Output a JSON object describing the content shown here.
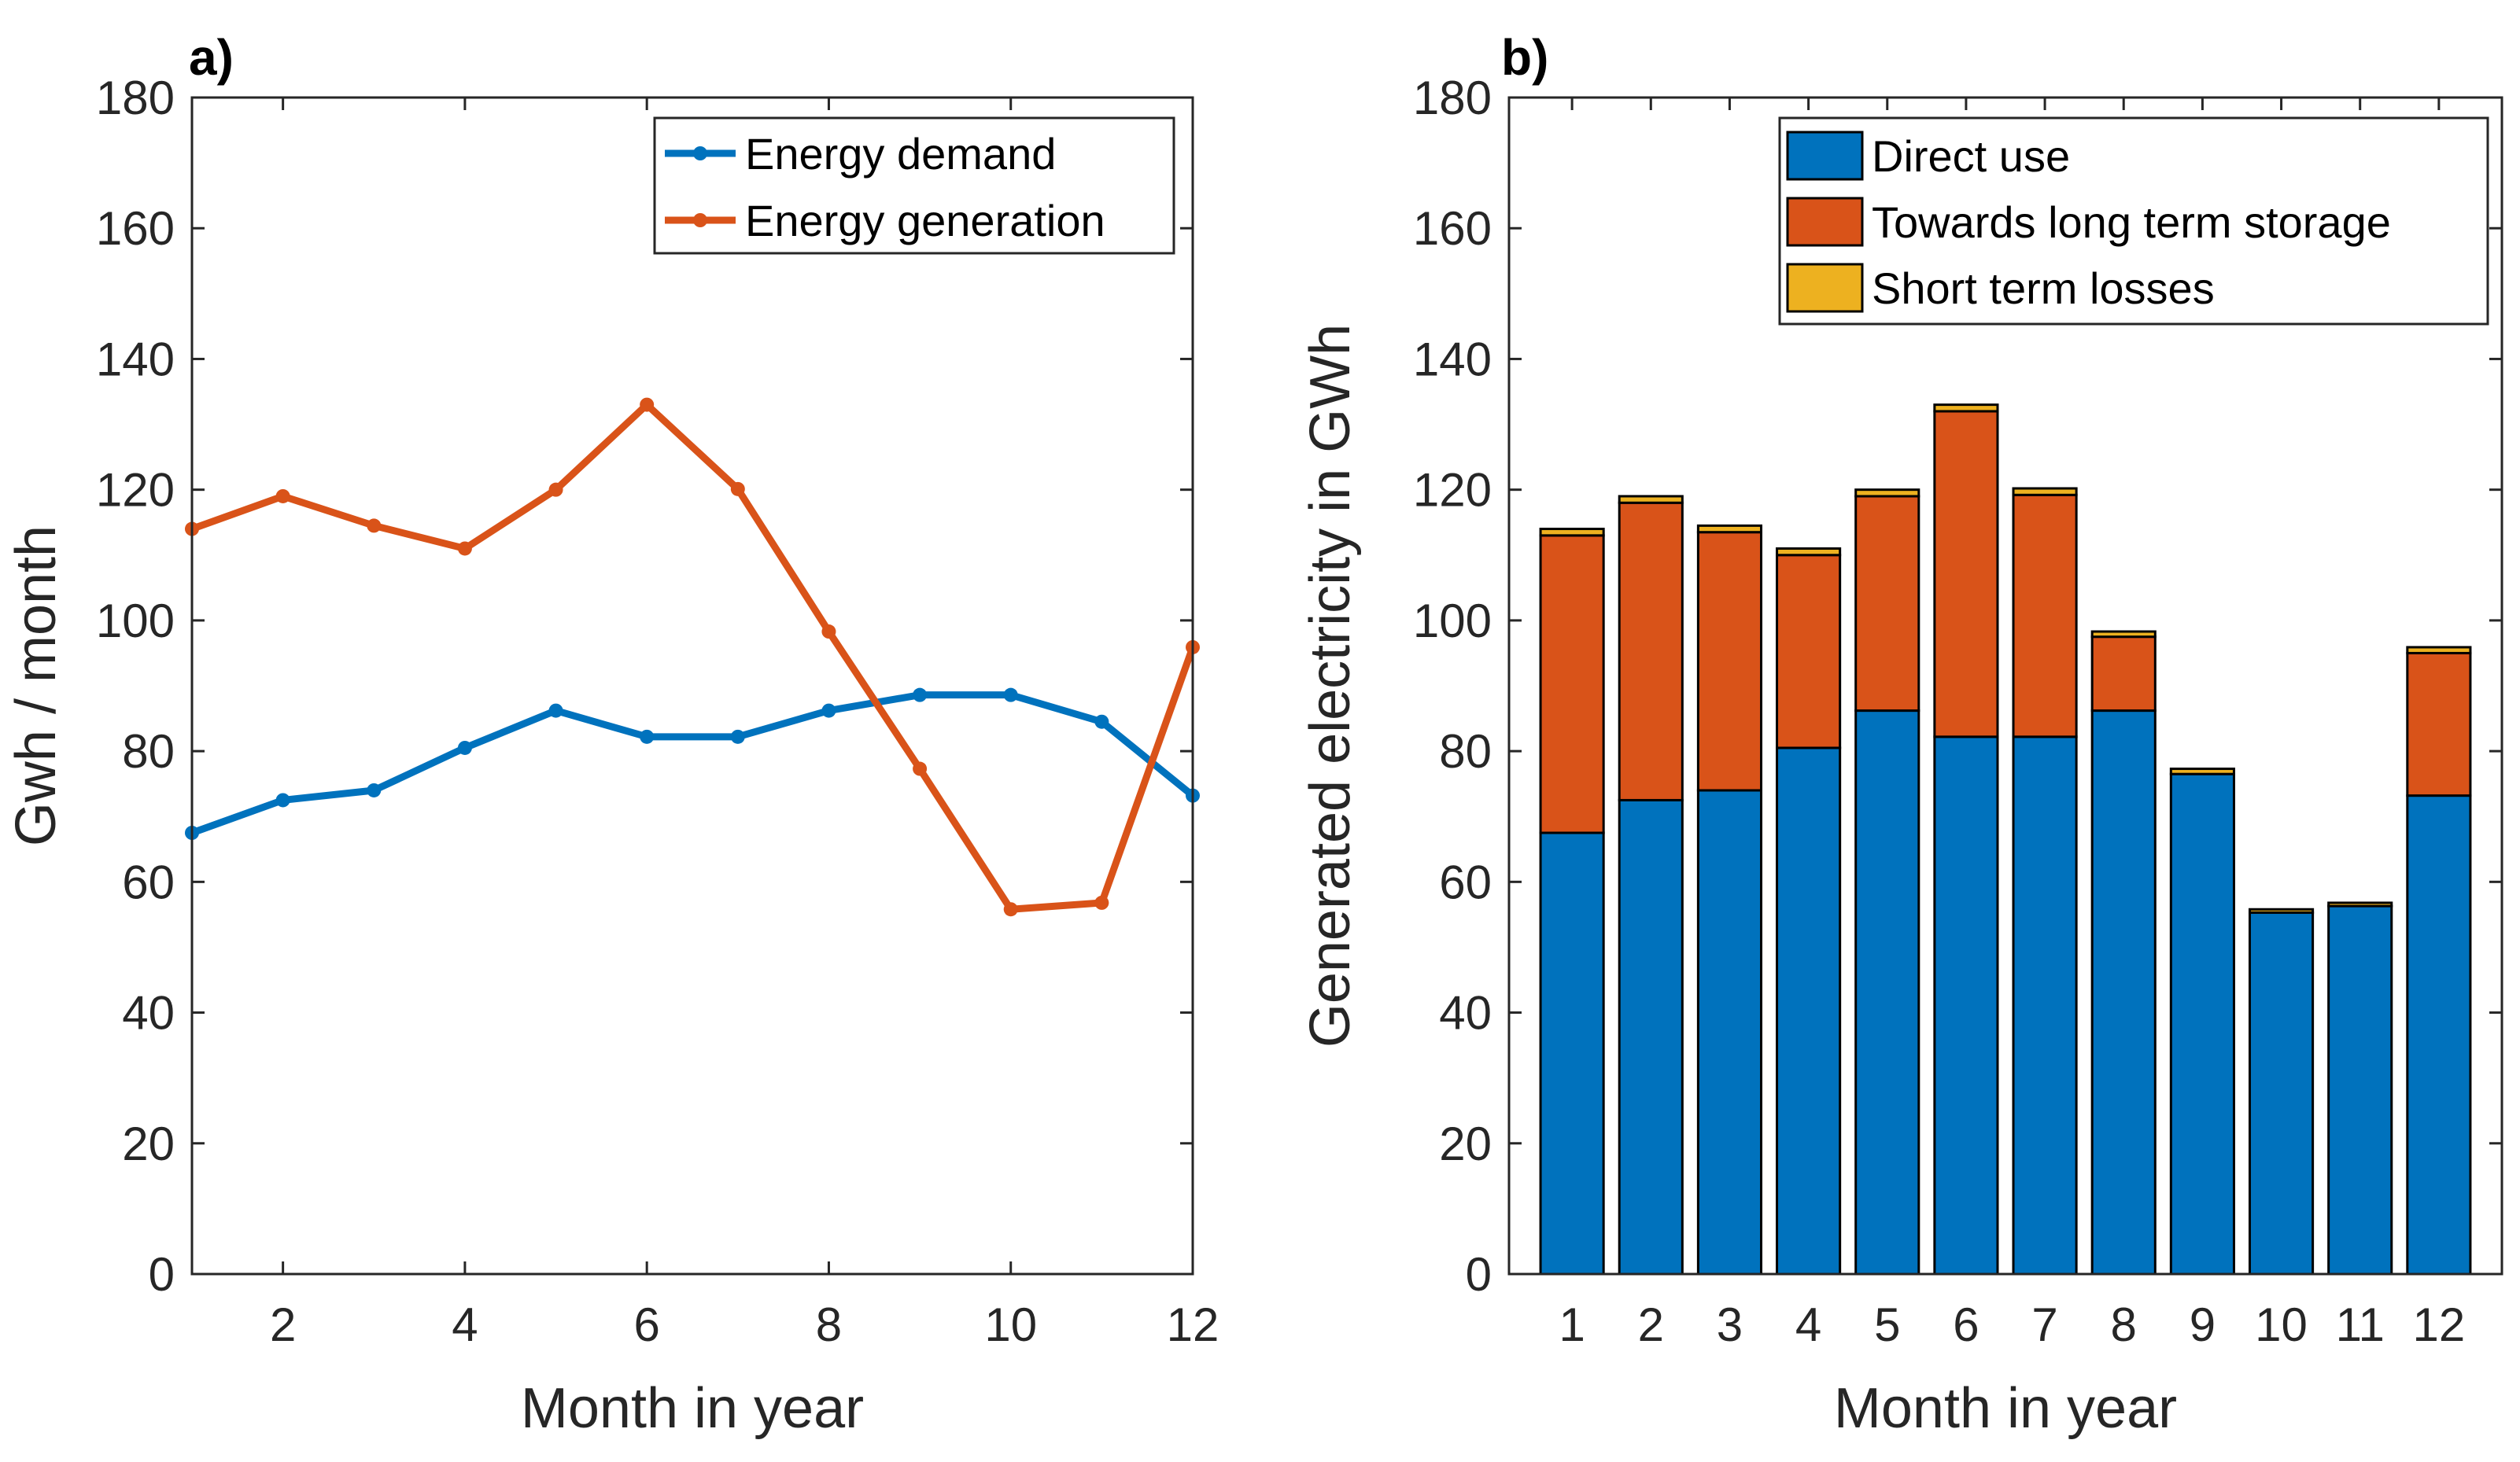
{
  "chart_data": [
    {
      "type": "line",
      "panel_label": "a)",
      "x": [
        1,
        2,
        3,
        4,
        5,
        6,
        7,
        8,
        9,
        10,
        11,
        12
      ],
      "series": [
        {
          "name": "Energy demand",
          "color": "#0072BD",
          "values": [
            67.5,
            72.5,
            74,
            80.5,
            86.2,
            82.2,
            82.2,
            86.2,
            88.6,
            88.6,
            84.5,
            73.2
          ]
        },
        {
          "name": "Energy generation",
          "color": "#D95319",
          "values": [
            114,
            119,
            114.5,
            111,
            120,
            133,
            120.1,
            98.3,
            77.3,
            55.8,
            56.8,
            95.9
          ]
        }
      ],
      "xlabel": "Month in year",
      "ylabel": "Gwh / month",
      "xlim": [
        1,
        12
      ],
      "ylim": [
        0,
        180
      ],
      "xticks": [
        2,
        4,
        6,
        8,
        10,
        12
      ],
      "xtick_labels": [
        "2",
        "4",
        "6",
        "8",
        "10",
        "12"
      ],
      "yticks": [
        0,
        20,
        40,
        60,
        80,
        100,
        120,
        140,
        160,
        180
      ],
      "ytick_labels": [
        "0",
        "20",
        "40",
        "60",
        "80",
        "100",
        "120",
        "140",
        "160",
        "180"
      ],
      "legend_position": "top-right"
    },
    {
      "type": "bar",
      "stacked": true,
      "panel_label": "b)",
      "categories": [
        "1",
        "2",
        "3",
        "4",
        "5",
        "6",
        "7",
        "8",
        "9",
        "10",
        "11",
        "12"
      ],
      "series": [
        {
          "name": "Direct use",
          "color": "#0072BD",
          "values": [
            67.5,
            72.5,
            74,
            80.5,
            86.2,
            82.2,
            82.2,
            86.2,
            76.5,
            55.3,
            56.3,
            73.2
          ]
        },
        {
          "name": "Towards long term storage",
          "color": "#D95319",
          "values": [
            45.5,
            45.5,
            39.5,
            29.5,
            32.8,
            49.8,
            37,
            11.3,
            0,
            0,
            0,
            21.8
          ]
        },
        {
          "name": "Short term losses",
          "color": "#EDB120",
          "values": [
            1,
            1,
            1,
            1,
            1,
            1,
            1,
            0.8,
            0.8,
            0.5,
            0.5,
            0.9
          ]
        }
      ],
      "xlabel": "Month in year",
      "ylabel": "Generated electricity in GWh",
      "ylim": [
        0,
        180
      ],
      "yticks": [
        0,
        20,
        40,
        60,
        80,
        100,
        120,
        140,
        160,
        180
      ],
      "ytick_labels": [
        "0",
        "20",
        "40",
        "60",
        "80",
        "100",
        "120",
        "140",
        "160",
        "180"
      ],
      "legend_position": "top-right"
    }
  ]
}
